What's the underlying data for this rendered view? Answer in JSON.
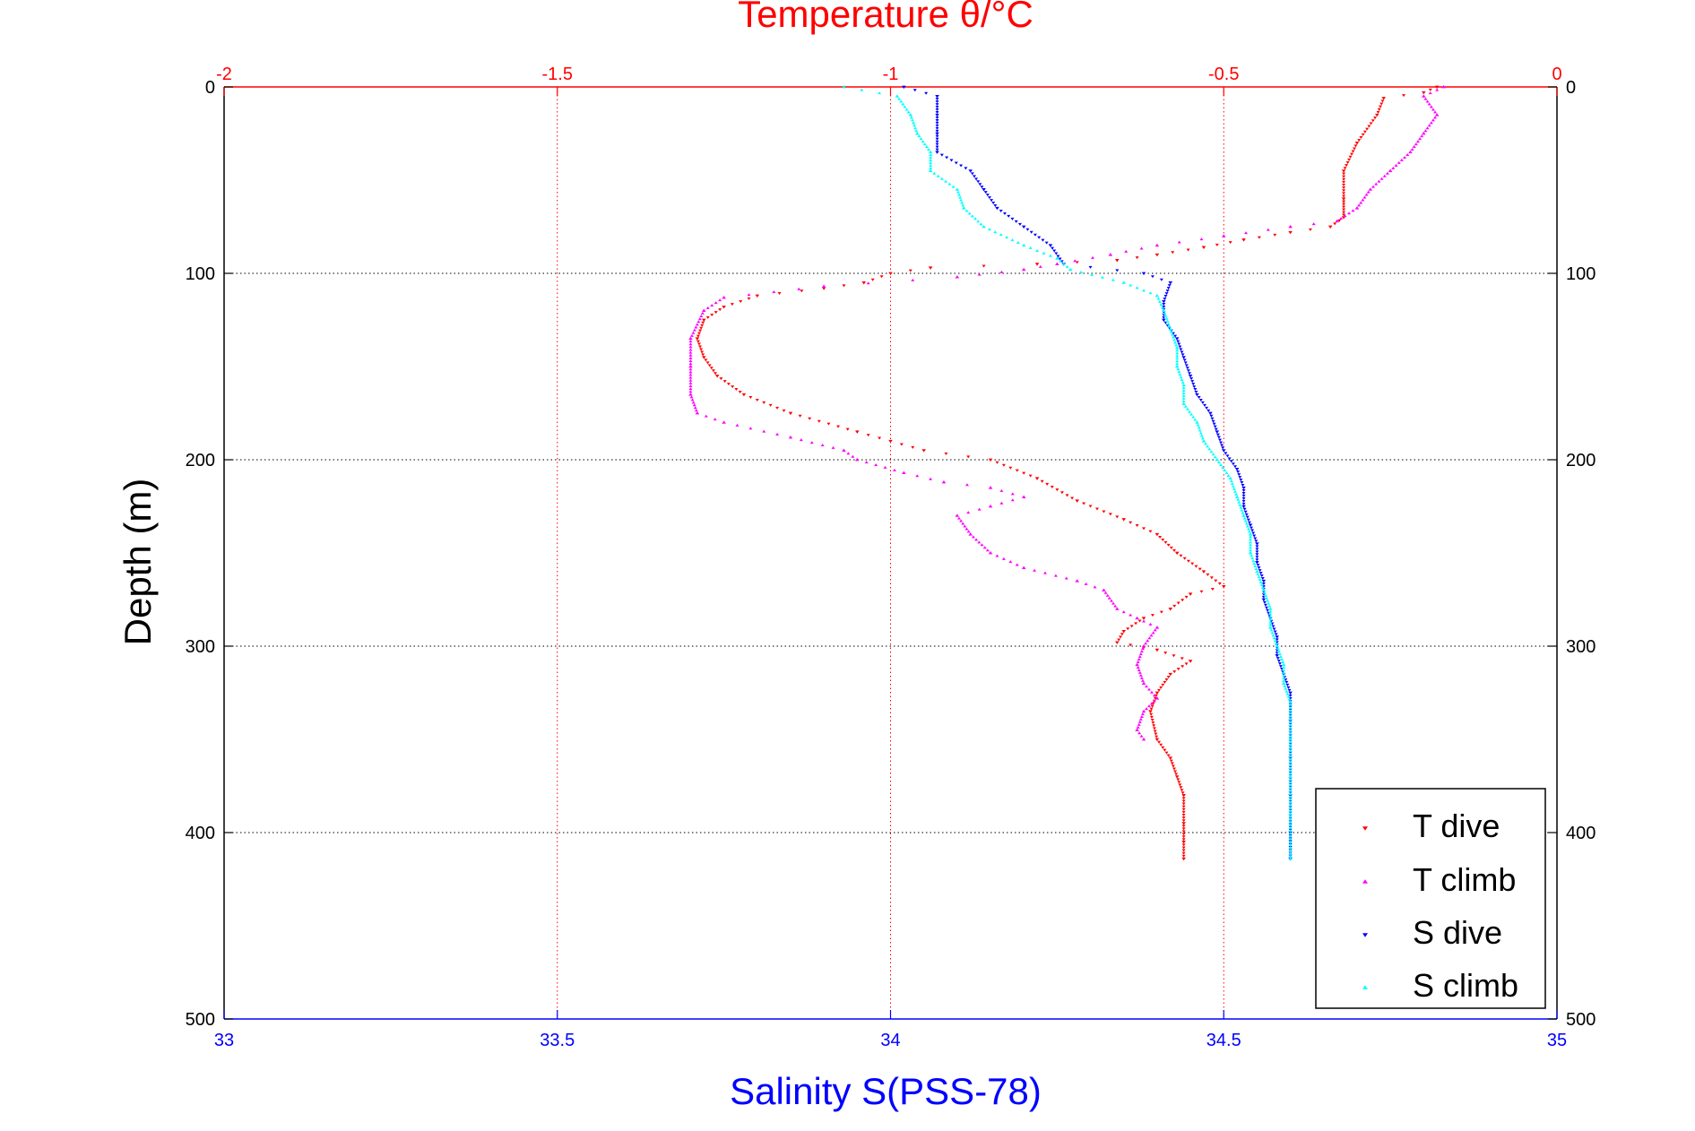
{
  "chart_data": {
    "type": "scatter",
    "title": "",
    "top_axis": {
      "label": "Temperature θ/°C",
      "range": [
        -2,
        0
      ],
      "ticks": [
        -2,
        -1.5,
        -1,
        -0.5,
        0
      ],
      "tick_labels": [
        "-2",
        "-1.5",
        "-1",
        "-0.5",
        "0"
      ],
      "color": "#ff0000"
    },
    "bottom_axis": {
      "label": "Salinity S(PSS-78)",
      "range": [
        33,
        35
      ],
      "ticks": [
        33,
        33.5,
        34,
        34.5,
        35
      ],
      "tick_labels": [
        "33",
        "33.5",
        "34",
        "34.5",
        "35"
      ],
      "color": "#0000ff"
    },
    "y_axis": {
      "label": "Depth (m)",
      "range": [
        0,
        500
      ],
      "reversed": true,
      "ticks": [
        0,
        100,
        200,
        300,
        400,
        500
      ],
      "tick_labels": [
        "0",
        "100",
        "200",
        "300",
        "400",
        "500"
      ]
    },
    "grid": true,
    "legend_position": "bottom-right",
    "series": [
      {
        "name": "T dive",
        "axis": "temperature",
        "marker": "triangle-down",
        "color": "#ff0000",
        "points": [
          [
            -0.18,
            0
          ],
          [
            -0.2,
            3
          ],
          [
            -0.26,
            6
          ],
          [
            -0.27,
            15
          ],
          [
            -0.3,
            30
          ],
          [
            -0.32,
            45
          ],
          [
            -0.32,
            60
          ],
          [
            -0.32,
            70
          ],
          [
            -0.34,
            75
          ],
          [
            -0.4,
            78
          ],
          [
            -0.47,
            82
          ],
          [
            -0.53,
            86
          ],
          [
            -0.6,
            90
          ],
          [
            -0.66,
            93
          ],
          [
            -0.78,
            95
          ],
          [
            -0.94,
            97
          ],
          [
            -1.0,
            100
          ],
          [
            -1.04,
            105
          ],
          [
            -1.1,
            108
          ],
          [
            -1.2,
            112
          ],
          [
            -1.25,
            118
          ],
          [
            -1.28,
            125
          ],
          [
            -1.29,
            135
          ],
          [
            -1.28,
            145
          ],
          [
            -1.26,
            155
          ],
          [
            -1.22,
            165
          ],
          [
            -1.15,
            175
          ],
          [
            -1.05,
            185
          ],
          [
            -1.0,
            190
          ],
          [
            -0.95,
            195
          ],
          [
            -0.85,
            200
          ],
          [
            -0.78,
            210
          ],
          [
            -0.72,
            222
          ],
          [
            -0.65,
            232
          ],
          [
            -0.6,
            240
          ],
          [
            -0.57,
            250
          ],
          [
            -0.53,
            260
          ],
          [
            -0.5,
            268
          ],
          [
            -0.55,
            272
          ],
          [
            -0.58,
            280
          ],
          [
            -0.62,
            285
          ],
          [
            -0.65,
            292
          ],
          [
            -0.66,
            298
          ],
          [
            -0.6,
            302
          ],
          [
            -0.55,
            308
          ],
          [
            -0.58,
            315
          ],
          [
            -0.6,
            325
          ],
          [
            -0.61,
            335
          ],
          [
            -0.6,
            350
          ],
          [
            -0.58,
            360
          ],
          [
            -0.57,
            370
          ],
          [
            -0.56,
            380
          ],
          [
            -0.56,
            395
          ],
          [
            -0.56,
            405
          ],
          [
            -0.56,
            414
          ]
        ]
      },
      {
        "name": "T climb",
        "axis": "temperature",
        "marker": "triangle-up",
        "color": "#ff00ff",
        "points": [
          [
            -0.17,
            0
          ],
          [
            -0.2,
            5
          ],
          [
            -0.18,
            15
          ],
          [
            -0.2,
            25
          ],
          [
            -0.22,
            35
          ],
          [
            -0.25,
            45
          ],
          [
            -0.28,
            55
          ],
          [
            -0.3,
            65
          ],
          [
            -0.33,
            72
          ],
          [
            -0.4,
            75
          ],
          [
            -0.5,
            80
          ],
          [
            -0.6,
            85
          ],
          [
            -0.67,
            90
          ],
          [
            -0.75,
            95
          ],
          [
            -0.8,
            98
          ],
          [
            -0.9,
            102
          ],
          [
            -1.1,
            107
          ],
          [
            -1.25,
            113
          ],
          [
            -1.28,
            120
          ],
          [
            -1.3,
            135
          ],
          [
            -1.3,
            150
          ],
          [
            -1.3,
            165
          ],
          [
            -1.29,
            175
          ],
          [
            -1.25,
            180
          ],
          [
            -1.15,
            188
          ],
          [
            -1.07,
            195
          ],
          [
            -1.05,
            200
          ],
          [
            -0.98,
            207
          ],
          [
            -0.92,
            212
          ],
          [
            -0.85,
            215
          ],
          [
            -0.8,
            220
          ],
          [
            -0.85,
            225
          ],
          [
            -0.9,
            230
          ],
          [
            -0.88,
            240
          ],
          [
            -0.85,
            250
          ],
          [
            -0.8,
            258
          ],
          [
            -0.72,
            265
          ],
          [
            -0.68,
            270
          ],
          [
            -0.66,
            280
          ],
          [
            -0.63,
            285
          ],
          [
            -0.6,
            290
          ],
          [
            -0.62,
            300
          ],
          [
            -0.63,
            310
          ],
          [
            -0.62,
            320
          ],
          [
            -0.6,
            328
          ],
          [
            -0.62,
            335
          ],
          [
            -0.63,
            345
          ],
          [
            -0.62,
            350
          ]
        ]
      },
      {
        "name": "S dive",
        "axis": "salinity",
        "marker": "triangle-down",
        "color": "#0000ff",
        "points": [
          [
            34.02,
            0
          ],
          [
            34.07,
            5
          ],
          [
            34.07,
            15
          ],
          [
            34.07,
            25
          ],
          [
            34.07,
            35
          ],
          [
            34.12,
            45
          ],
          [
            34.14,
            55
          ],
          [
            34.16,
            65
          ],
          [
            34.2,
            75
          ],
          [
            34.24,
            85
          ],
          [
            34.26,
            95
          ],
          [
            34.38,
            100
          ],
          [
            34.42,
            105
          ],
          [
            34.41,
            115
          ],
          [
            34.41,
            125
          ],
          [
            34.43,
            135
          ],
          [
            34.44,
            145
          ],
          [
            34.45,
            155
          ],
          [
            34.46,
            165
          ],
          [
            34.48,
            175
          ],
          [
            34.49,
            185
          ],
          [
            34.5,
            195
          ],
          [
            34.52,
            205
          ],
          [
            34.53,
            215
          ],
          [
            34.53,
            225
          ],
          [
            34.54,
            235
          ],
          [
            34.55,
            245
          ],
          [
            34.55,
            255
          ],
          [
            34.56,
            265
          ],
          [
            34.56,
            275
          ],
          [
            34.57,
            285
          ],
          [
            34.58,
            295
          ],
          [
            34.58,
            305
          ],
          [
            34.59,
            315
          ],
          [
            34.6,
            325
          ],
          [
            34.6,
            340
          ],
          [
            34.6,
            360
          ],
          [
            34.6,
            380
          ],
          [
            34.6,
            400
          ],
          [
            34.6,
            414
          ]
        ]
      },
      {
        "name": "S climb",
        "axis": "salinity",
        "marker": "triangle-up",
        "color": "#00ffff",
        "points": [
          [
            33.93,
            0
          ],
          [
            34.01,
            5
          ],
          [
            34.03,
            15
          ],
          [
            34.04,
            25
          ],
          [
            34.06,
            35
          ],
          [
            34.06,
            45
          ],
          [
            34.1,
            55
          ],
          [
            34.11,
            65
          ],
          [
            34.14,
            75
          ],
          [
            34.2,
            85
          ],
          [
            34.25,
            92
          ],
          [
            34.27,
            98
          ],
          [
            34.35,
            105
          ],
          [
            34.4,
            112
          ],
          [
            34.41,
            120
          ],
          [
            34.42,
            130
          ],
          [
            34.43,
            140
          ],
          [
            34.43,
            150
          ],
          [
            34.44,
            160
          ],
          [
            34.44,
            170
          ],
          [
            34.46,
            180
          ],
          [
            34.47,
            190
          ],
          [
            34.49,
            200
          ],
          [
            34.51,
            210
          ],
          [
            34.52,
            220
          ],
          [
            34.53,
            230
          ],
          [
            34.54,
            240
          ],
          [
            34.54,
            250
          ],
          [
            34.55,
            260
          ],
          [
            34.56,
            270
          ],
          [
            34.57,
            280
          ],
          [
            34.57,
            290
          ],
          [
            34.58,
            300
          ],
          [
            34.59,
            310
          ],
          [
            34.59,
            320
          ],
          [
            34.6,
            330
          ],
          [
            34.6,
            350
          ],
          [
            34.6,
            370
          ],
          [
            34.6,
            390
          ],
          [
            34.6,
            414
          ]
        ]
      }
    ]
  },
  "legend": {
    "items": [
      {
        "label": "T dive",
        "color": "#ff0000",
        "marker": "triangle-down"
      },
      {
        "label": "T climb",
        "color": "#ff00ff",
        "marker": "triangle-up"
      },
      {
        "label": "S dive",
        "color": "#0000ff",
        "marker": "triangle-down"
      },
      {
        "label": "S climb",
        "color": "#00ffff",
        "marker": "triangle-up"
      }
    ]
  }
}
